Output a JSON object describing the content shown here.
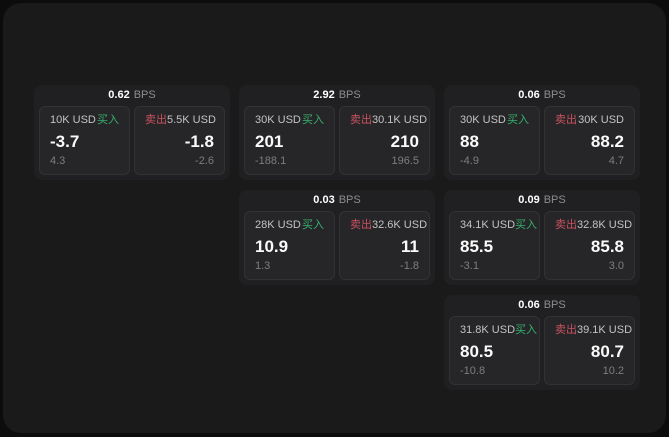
{
  "colors": {
    "buy_green": "#36b06e",
    "sell_red": "#c9525f",
    "window_bg": "#1a1a1b",
    "card_bg": "#202022",
    "panel_bg": "#262628"
  },
  "labels": {
    "bps_unit": "BPS",
    "buy": "买入",
    "sell": "卖出"
  },
  "cards": [
    {
      "bps": "0.62",
      "unit": "BPS",
      "buy": {
        "amount": "10K USD",
        "label": "买入",
        "value": "-3.7",
        "sub": "4.3"
      },
      "sell": {
        "label": "卖出",
        "amount": "5.5K USD",
        "value": "-1.8",
        "sub": "-2.6"
      }
    },
    {
      "bps": "2.92",
      "unit": "BPS",
      "buy": {
        "amount": "30K USD",
        "label": "买入",
        "value": "201",
        "sub": "-188.1"
      },
      "sell": {
        "label": "卖出",
        "amount": "30.1K USD",
        "value": "210",
        "sub": "196.5"
      }
    },
    {
      "bps": "0.06",
      "unit": "BPS",
      "buy": {
        "amount": "30K USD",
        "label": "买入",
        "value": "88",
        "sub": "-4.9"
      },
      "sell": {
        "label": "卖出",
        "amount": "30K USD",
        "value": "88.2",
        "sub": "4.7"
      }
    },
    {
      "bps": "0.03",
      "unit": "BPS",
      "buy": {
        "amount": "28K USD",
        "label": "买入",
        "value": "10.9",
        "sub": "1.3"
      },
      "sell": {
        "label": "卖出",
        "amount": "32.6K USD",
        "value": "11",
        "sub": "-1.8"
      }
    },
    {
      "bps": "0.09",
      "unit": "BPS",
      "buy": {
        "amount": "34.1K USD",
        "label": "买入",
        "value": "85.5",
        "sub": "-3.1"
      },
      "sell": {
        "label": "卖出",
        "amount": "32.8K USD",
        "value": "85.8",
        "sub": "3.0"
      }
    },
    {
      "bps": "0.06",
      "unit": "BPS",
      "buy": {
        "amount": "31.8K USD",
        "label": "买入",
        "value": "80.5",
        "sub": "-10.8"
      },
      "sell": {
        "label": "卖出",
        "amount": "39.1K USD",
        "value": "80.7",
        "sub": "10.2"
      }
    }
  ]
}
